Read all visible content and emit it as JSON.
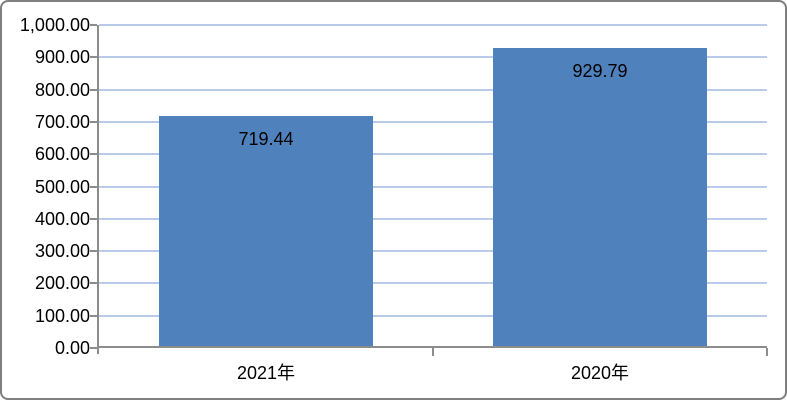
{
  "chart_data": {
    "type": "bar",
    "title": "",
    "xlabel": "",
    "ylabel": "",
    "categories": [
      "2021年",
      "2020年"
    ],
    "values": [
      719.44,
      929.79
    ],
    "value_labels": [
      "719.44",
      "929.79"
    ],
    "ylim": [
      0,
      1000
    ],
    "y_tick_step": 100,
    "y_tick_labels": [
      "0.00",
      "100.00",
      "200.00",
      "300.00",
      "400.00",
      "500.00",
      "600.00",
      "700.00",
      "800.00",
      "900.00",
      "1,000.00"
    ],
    "grid": true,
    "legend": false,
    "data_label_position": "inside-end",
    "colors": {
      "bar_fill": "#4f81bd",
      "gridline": "#b9cbe9",
      "axis": "#8c8c8c",
      "frame_border": "#7f7f7f",
      "text": "#000000",
      "background": "#ffffff"
    }
  }
}
